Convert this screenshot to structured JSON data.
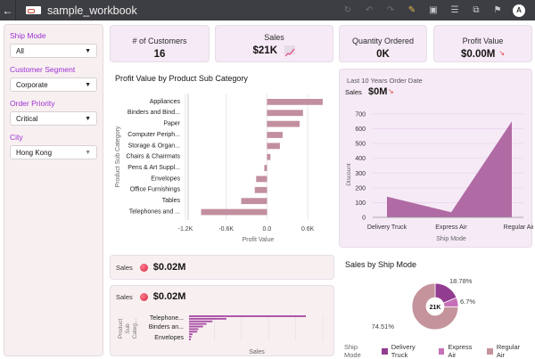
{
  "header": {
    "back_icon": "arrow-left-icon",
    "title": "sample_workbook",
    "icons": [
      "refresh-icon",
      "undo-icon",
      "redo-icon",
      "edit-icon",
      "data-icon",
      "comments-icon",
      "present-icon",
      "bookmark-icon"
    ],
    "avatar_initial": "A"
  },
  "filters": [
    {
      "label": "Ship Mode",
      "value": "All"
    },
    {
      "label": "Customer Segment",
      "value": "Corporate"
    },
    {
      "label": "Order Priority",
      "value": "Critical"
    },
    {
      "label": "City",
      "value": "Hong Kong"
    }
  ],
  "kpis": {
    "customers": {
      "label": "# of Customers",
      "value": "16"
    },
    "sales": {
      "label": "Sales",
      "value": "$21K"
    },
    "quantity": {
      "label": "Quantity Ordered",
      "value": "0K"
    },
    "profit": {
      "label": "Profit Value",
      "value": "$0.00M"
    }
  },
  "sales_tiles": {
    "tile1": {
      "label": "Sales",
      "value": "$0.02M"
    },
    "tile2": {
      "label": "Sales",
      "value": "$0.02M"
    }
  },
  "area_header": {
    "subtitle": "Last 10 Years Order Date",
    "sales_label": "Sales",
    "sales_value": "$0M"
  },
  "colors": {
    "bar": "#c28f9f",
    "area": "#b06aa4",
    "mini_bar": "#a84ea6",
    "delivery_truck": "#933d90",
    "express_air": "#c66fb8",
    "regular_air": "#c4939b"
  },
  "chart_data": [
    {
      "type": "bar",
      "orientation": "horizontal",
      "title": "Profit Value by Product Sub Category",
      "xlabel": "Profit Value",
      "ylabel": "Product Sub Category",
      "categories": [
        "Appliances",
        "Binders and Bind...",
        "Paper",
        "Computer Periph...",
        "Storage & Organ...",
        "Chairs & Chairmats",
        "Pens & Art Suppl...",
        "Envelopes",
        "Office Furnishings",
        "Tables",
        "Telephones and ..."
      ],
      "values": [
        820,
        530,
        480,
        230,
        190,
        50,
        -40,
        -160,
        -180,
        -380,
        -970
      ],
      "xlim": [
        -1200,
        900
      ],
      "xticks": [
        -1200,
        -600,
        0,
        600
      ],
      "xtick_labels": [
        "-1.2K",
        "-0.6K",
        "0.0",
        "0.6K"
      ],
      "grid": true
    },
    {
      "type": "area",
      "title": "Last 10 Years Order Date",
      "xlabel": "Ship Mode",
      "ylabel": "Discount",
      "categories": [
        "Delivery Truck",
        "Express Air",
        "Regular Air"
      ],
      "values": [
        140,
        35,
        650
      ],
      "ylim": [
        0,
        700
      ],
      "yticks": [
        0,
        100,
        200,
        300,
        400,
        500,
        600,
        700
      ],
      "grid": true
    },
    {
      "type": "bar",
      "orientation": "horizontal",
      "title": "Sales",
      "xlabel": "Sales",
      "ylabel": "Product Sub Categ...",
      "visible_labels": [
        "Telephone...",
        "Binders an...",
        "Envelopes"
      ],
      "values": [
        100,
        32,
        20,
        15,
        12,
        8,
        7,
        3,
        2,
        1.5
      ],
      "grid": true
    },
    {
      "type": "pie",
      "title": "Sales by Ship Mode",
      "center_label": "21K",
      "legend_title": "Ship Mode",
      "legend_position": "bottom",
      "slices": [
        {
          "label": "Delivery Truck",
          "value": 18.78,
          "display": "18.78%"
        },
        {
          "label": "Express Air",
          "value": 6.7,
          "display": "6.7%"
        },
        {
          "label": "Regular Air",
          "value": 74.51,
          "display": "74.51%"
        }
      ]
    }
  ]
}
